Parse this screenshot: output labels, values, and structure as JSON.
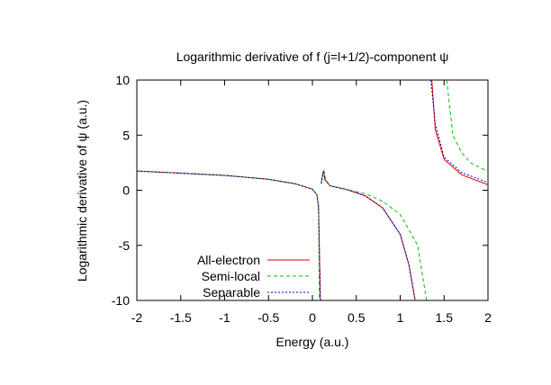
{
  "chart_data": {
    "type": "line",
    "title": "Logarithmic derivative of f (j=l+1/2)-component ψ",
    "xlabel": "Energy (a.u.)",
    "ylabel": "Logarithmic derivative of ψ (a.u.)",
    "xlim": [
      -2,
      2
    ],
    "ylim": [
      -10,
      10
    ],
    "x_ticks": [
      -2,
      -1.5,
      -1,
      -0.5,
      0,
      0.5,
      1,
      1.5,
      2
    ],
    "y_ticks": [
      -10,
      -5,
      0,
      5,
      10
    ],
    "x_tick_labels": [
      "-2",
      "-1.5",
      "-1",
      "-0.5",
      "0",
      "0.5",
      "1",
      "1.5",
      "2"
    ],
    "y_tick_labels": [
      "-10",
      "-5",
      "0",
      "5",
      "10"
    ],
    "grid": false,
    "legend_position": "bottom-left",
    "series": [
      {
        "name": "All-electron",
        "color": "#e00000",
        "dash": "solid",
        "segments": [
          [
            [
              -2,
              1.75
            ],
            [
              -1.5,
              1.55
            ],
            [
              -1,
              1.35
            ],
            [
              -0.5,
              1.0
            ],
            [
              -0.2,
              0.6
            ],
            [
              0,
              0.1
            ],
            [
              0.05,
              -0.4
            ],
            [
              0.07,
              -1.5
            ],
            [
              0.09,
              -10
            ]
          ],
          [
            [
              0.1,
              0.6
            ],
            [
              0.12,
              1.6
            ],
            [
              0.13,
              1.7
            ],
            [
              0.14,
              1.0
            ],
            [
              0.2,
              0.4
            ],
            [
              0.4,
              0.05
            ],
            [
              0.6,
              -0.5
            ],
            [
              0.8,
              -1.6
            ],
            [
              1.0,
              -4.0
            ],
            [
              1.1,
              -6.8
            ],
            [
              1.17,
              -10
            ]
          ],
          [
            [
              1.36,
              10
            ],
            [
              1.4,
              5.5
            ],
            [
              1.5,
              2.8
            ],
            [
              1.7,
              1.4
            ],
            [
              2.0,
              0.5
            ]
          ]
        ]
      },
      {
        "name": "Semi-local",
        "color": "#00c000",
        "dash": "4,3",
        "segments": [
          [
            [
              -2,
              1.75
            ],
            [
              -1.5,
              1.55
            ],
            [
              -1,
              1.35
            ],
            [
              -0.5,
              1.0
            ],
            [
              -0.2,
              0.6
            ],
            [
              0,
              0.1
            ],
            [
              0.05,
              -0.4
            ],
            [
              0.07,
              -1.5
            ],
            [
              0.08,
              -10
            ]
          ],
          [
            [
              0.1,
              0.6
            ],
            [
              0.12,
              1.7
            ],
            [
              0.13,
              1.8
            ],
            [
              0.15,
              1.0
            ],
            [
              0.2,
              0.4
            ],
            [
              0.4,
              0.05
            ],
            [
              0.6,
              -0.3
            ],
            [
              0.8,
              -1.0
            ],
            [
              1.0,
              -2.2
            ],
            [
              1.2,
              -5.0
            ],
            [
              1.3,
              -10
            ]
          ],
          [
            [
              1.53,
              10
            ],
            [
              1.6,
              5.0
            ],
            [
              1.7,
              3.4
            ],
            [
              1.8,
              2.5
            ],
            [
              2.0,
              1.7
            ]
          ]
        ]
      },
      {
        "name": "Separable",
        "color": "#0000c0",
        "dash": "2,2",
        "segments": [
          [
            [
              -2,
              1.75
            ],
            [
              -1.5,
              1.55
            ],
            [
              -1,
              1.35
            ],
            [
              -0.5,
              1.0
            ],
            [
              -0.2,
              0.6
            ],
            [
              0,
              0.1
            ],
            [
              0.05,
              -0.4
            ],
            [
              0.07,
              -1.5
            ],
            [
              0.09,
              -10
            ]
          ],
          [
            [
              0.1,
              0.6
            ],
            [
              0.12,
              1.6
            ],
            [
              0.13,
              1.75
            ],
            [
              0.14,
              1.0
            ],
            [
              0.2,
              0.4
            ],
            [
              0.4,
              0.05
            ],
            [
              0.6,
              -0.5
            ],
            [
              0.8,
              -1.6
            ],
            [
              1.0,
              -4.0
            ],
            [
              1.1,
              -6.8
            ],
            [
              1.17,
              -10
            ]
          ],
          [
            [
              1.35,
              10
            ],
            [
              1.4,
              6.0
            ],
            [
              1.5,
              3.0
            ],
            [
              1.7,
              1.6
            ],
            [
              2.0,
              0.7
            ]
          ]
        ]
      }
    ]
  }
}
